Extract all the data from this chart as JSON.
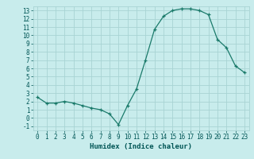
{
  "x": [
    0,
    1,
    2,
    3,
    4,
    5,
    6,
    7,
    8,
    9,
    10,
    11,
    12,
    13,
    14,
    15,
    16,
    17,
    18,
    19,
    20,
    21,
    22,
    23
  ],
  "y": [
    2.5,
    1.8,
    1.8,
    2.0,
    1.8,
    1.5,
    1.2,
    1.0,
    0.5,
    -0.8,
    1.5,
    3.5,
    7.0,
    10.7,
    12.3,
    13.0,
    13.2,
    13.2,
    13.0,
    12.5,
    9.5,
    8.5,
    6.3,
    5.5
  ],
  "xlabel": "Humidex (Indice chaleur)",
  "xlim": [
    -0.5,
    23.5
  ],
  "ylim": [
    -1.5,
    13.5
  ],
  "yticks": [
    -1,
    0,
    1,
    2,
    3,
    4,
    5,
    6,
    7,
    8,
    9,
    10,
    11,
    12,
    13
  ],
  "xticks": [
    0,
    1,
    2,
    3,
    4,
    5,
    6,
    7,
    8,
    9,
    10,
    11,
    12,
    13,
    14,
    15,
    16,
    17,
    18,
    19,
    20,
    21,
    22,
    23
  ],
  "line_color": "#1a7a6a",
  "marker": "+",
  "bg_color": "#c8ecec",
  "grid_color": "#a8d4d4",
  "label_color": "#005555",
  "tick_fontsize": 5.5,
  "xlabel_fontsize": 6.5
}
